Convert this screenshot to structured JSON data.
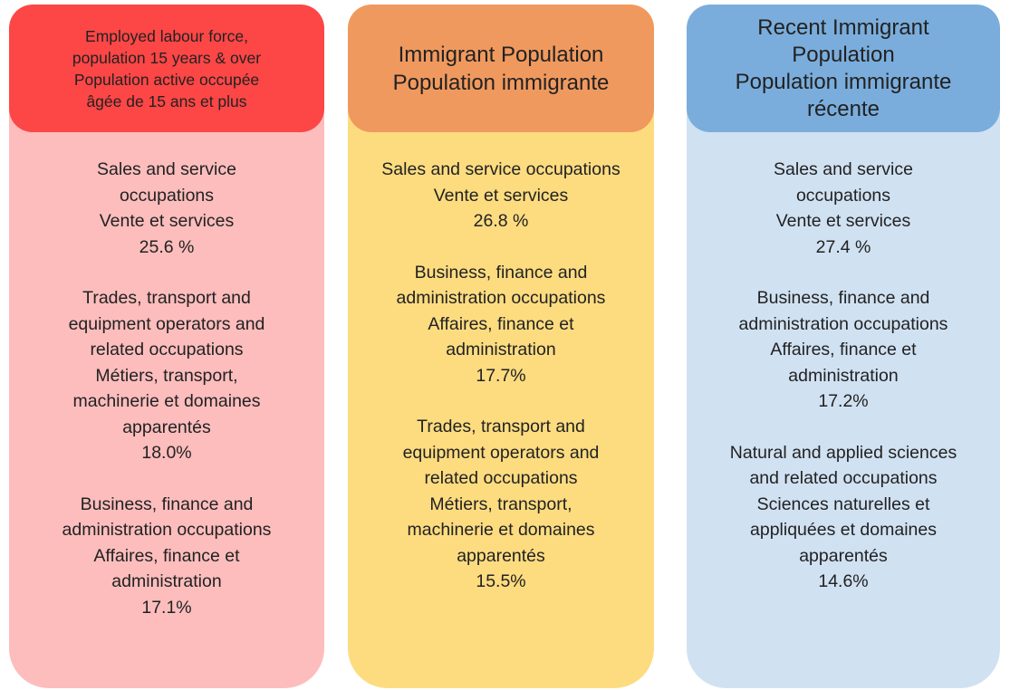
{
  "columns": [
    {
      "header": [
        "Employed labour force,",
        "population 15 years & over",
        "Population active occupée",
        "âgée de 15 ans et plus"
      ],
      "items": [
        {
          "lines": [
            "Sales and service",
            "occupations",
            "Vente et services",
            "25.6 %"
          ]
        },
        {
          "lines": [
            "Trades, transport and",
            "equipment operators and",
            "related occupations",
            "Métiers, transport,",
            "machinerie et domaines",
            "apparentés",
            "18.0%"
          ]
        },
        {
          "lines": [
            "Business, finance and",
            "administration occupations",
            "Affaires, finance et",
            "administration",
            "17.1%"
          ]
        }
      ]
    },
    {
      "header": [
        "Immigrant Population",
        "Population immigrante"
      ],
      "items": [
        {
          "lines": [
            "Sales and service occupations",
            "Vente et services",
            "26.8 %"
          ]
        },
        {
          "lines": [
            "Business, finance and",
            "administration occupations",
            "Affaires, finance et",
            "administration",
            "17.7%"
          ]
        },
        {
          "lines": [
            "Trades, transport and",
            "equipment operators and",
            "related occupations",
            "Métiers, transport,",
            "machinerie et domaines",
            "apparentés",
            "15.5%"
          ]
        }
      ]
    },
    {
      "header": [
        "Recent Immigrant",
        "Population",
        "Population immigrante",
        "récente"
      ],
      "items": [
        {
          "lines": [
            "Sales and service",
            "occupations",
            "Vente et services",
            "27.4 %"
          ]
        },
        {
          "lines": [
            "Business, finance and",
            "administration occupations",
            "Affaires, finance et",
            "administration",
            "17.2%"
          ]
        },
        {
          "lines": [
            "Natural and applied sciences",
            "and related occupations",
            "Sciences naturelles et",
            "appliquées et domaines",
            "apparentés",
            "14.6%"
          ]
        }
      ]
    }
  ]
}
